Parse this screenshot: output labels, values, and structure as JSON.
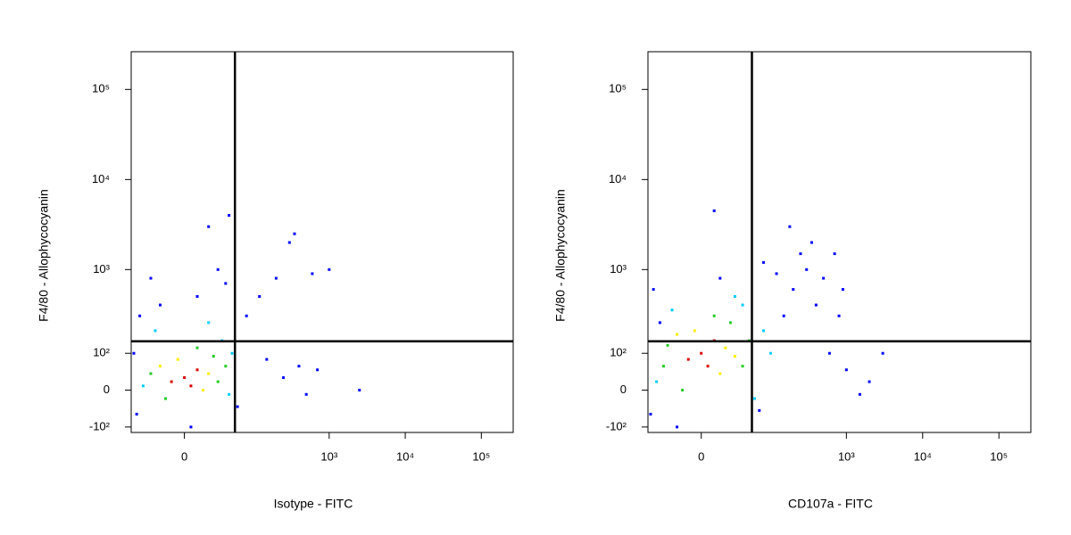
{
  "chart_data": [
    {
      "type": "scatter",
      "x_label": "Isotype - FITC",
      "y_label": "F4/80 - Allophycocyanin",
      "xscale": "biexponential",
      "yscale": "biexponential",
      "xlim": [
        -60,
        262144
      ],
      "ylim": [
        -120,
        262144
      ],
      "xticks": [
        0,
        {
          "value": 1000,
          "label": "10³"
        },
        {
          "value": 10000,
          "label": "10⁴"
        },
        {
          "value": 100000,
          "label": "10⁵"
        }
      ],
      "yticks": [
        {
          "value": -100,
          "label": "-10²"
        },
        0,
        {
          "value": 100,
          "label": "10²"
        },
        {
          "value": 1000,
          "label": "10³"
        },
        {
          "value": 10000,
          "label": "10⁴"
        },
        {
          "value": 100000,
          "label": "10⁵"
        }
      ],
      "gate": {
        "x": 55,
        "y": 147
      },
      "series": [
        {
          "color": "#0000ff",
          "x": [
            -50,
            60,
            -45,
            10,
            40,
            -20,
            30,
            80,
            120,
            200,
            300,
            350,
            150,
            250,
            400,
            500,
            -55,
            5,
            20,
            600,
            1000,
            2500,
            700,
            45,
            -30
          ],
          "y": [
            -60,
            -40,
            300,
            500,
            700,
            400,
            1000,
            300,
            500,
            800,
            2000,
            2500,
            80,
            30,
            60,
            -10,
            100,
            -100,
            3000,
            900,
            1000,
            0,
            50,
            4000,
            800
          ]
        },
        {
          "color": "#00ccff",
          "x": [
            -40,
            45,
            35,
            -25,
            50,
            20
          ],
          "y": [
            10,
            -10,
            150,
            200,
            100,
            250
          ]
        },
        {
          "color": "#22cc22",
          "x": [
            30,
            -30,
            25,
            40,
            -15,
            10
          ],
          "y": [
            20,
            40,
            90,
            60,
            -20,
            120
          ]
        },
        {
          "color": "#ffee00",
          "x": [
            20,
            -20,
            15,
            -5
          ],
          "y": [
            40,
            60,
            0,
            80
          ]
        },
        {
          "color": "#dd0000",
          "x": [
            0,
            10,
            -10,
            5
          ],
          "y": [
            30,
            50,
            20,
            10
          ]
        }
      ]
    },
    {
      "type": "scatter",
      "x_label": "CD107a - FITC",
      "y_label": "F4/80 - Allophycocyanin",
      "xscale": "biexponential",
      "yscale": "biexponential",
      "xlim": [
        -60,
        262144
      ],
      "ylim": [
        -120,
        262144
      ],
      "xticks": [
        0,
        {
          "value": 1000,
          "label": "10³"
        },
        {
          "value": 10000,
          "label": "10⁴"
        },
        {
          "value": 100000,
          "label": "10⁵"
        }
      ],
      "yticks": [
        {
          "value": -100,
          "label": "-10²"
        },
        0,
        {
          "value": 100,
          "label": "10²"
        },
        {
          "value": 1000,
          "label": "10³"
        },
        {
          "value": 10000,
          "label": "10⁴"
        },
        {
          "value": 100000,
          "label": "10⁵"
        }
      ],
      "gate": {
        "x": 55,
        "y": 147
      },
      "series": [
        {
          "color": "#0000ff",
          "x": [
            -55,
            70,
            -50,
            15,
            150,
            200,
            300,
            400,
            500,
            250,
            350,
            180,
            120,
            80,
            600,
            800,
            1000,
            1500,
            2000,
            700,
            -20,
            10,
            -40,
            900,
            3000
          ],
          "y": [
            -60,
            -50,
            600,
            800,
            300,
            600,
            1000,
            400,
            800,
            1500,
            2000,
            3000,
            900,
            1200,
            100,
            300,
            50,
            -10,
            20,
            1500,
            -100,
            4500,
            250,
            600,
            100
          ]
        },
        {
          "color": "#00ccff",
          "x": [
            -45,
            60,
            40,
            -25,
            80,
            30,
            100
          ],
          "y": [
            20,
            -20,
            400,
            350,
            200,
            500,
            100
          ]
        },
        {
          "color": "#22cc22",
          "x": [
            40,
            -30,
            25,
            50,
            -15,
            10,
            -35
          ],
          "y": [
            60,
            130,
            250,
            150,
            0,
            300,
            60
          ]
        },
        {
          "color": "#ffee00",
          "x": [
            20,
            -20,
            15,
            -5,
            30
          ],
          "y": [
            120,
            180,
            40,
            200,
            90
          ]
        },
        {
          "color": "#dd0000",
          "x": [
            0,
            10,
            -10,
            5
          ],
          "y": [
            100,
            150,
            80,
            60
          ]
        }
      ]
    }
  ]
}
